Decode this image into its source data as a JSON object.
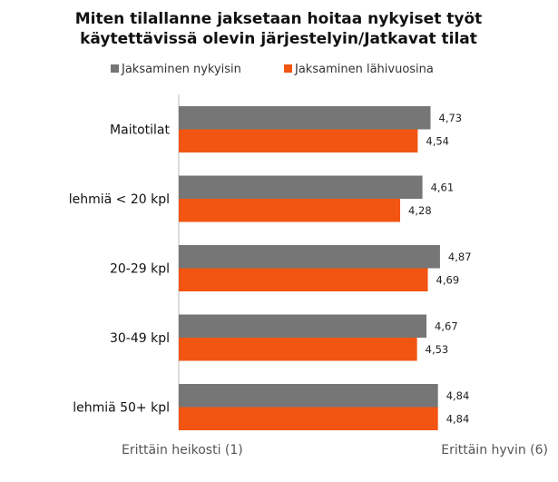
{
  "chart_data": {
    "type": "bar",
    "orientation": "horizontal",
    "title": [
      "Miten tilallanne jaksetaan hoitaa nykyiset työt",
      "käytettävissä olevin järjestelyin/Jatkavat tilat"
    ],
    "categories": [
      "Maitotilat",
      "lehmiä < 20 kpl",
      "20-29 kpl",
      "30-49 kpl",
      "lehmiä 50+ kpl"
    ],
    "series": [
      {
        "name": "Jaksaminen nykyisin",
        "color": "#767676",
        "values": [
          4.73,
          4.61,
          4.87,
          4.67,
          4.84
        ],
        "labels": [
          "4,73",
          "4,61",
          "4,87",
          "4,67",
          "4,84"
        ]
      },
      {
        "name": "Jaksaminen lähivuosina",
        "color": "#F25511",
        "values": [
          4.54,
          4.28,
          4.69,
          4.53,
          4.84
        ],
        "labels": [
          "4,54",
          "4,28",
          "4,69",
          "4,53",
          "4,84"
        ]
      }
    ],
    "xlim": [
      1,
      6
    ],
    "axis_left_label": "Erittäin heikosti (1)",
    "axis_right_label": "Erittäin hyvin (6)",
    "legend_position": "top",
    "grid": false
  }
}
